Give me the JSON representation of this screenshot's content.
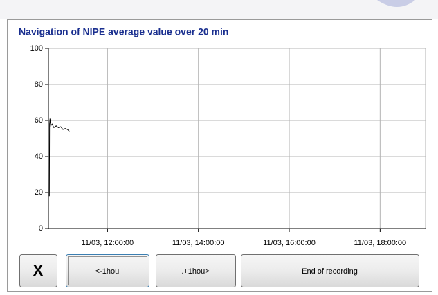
{
  "chart_data": {
    "type": "line",
    "title": "Navigation of NIPE average value over 20 min",
    "x": [
      10.72,
      10.725,
      10.735,
      10.75,
      10.78,
      10.82,
      10.87,
      10.92,
      10.97,
      11.02,
      11.07,
      11.12,
      11.16
    ],
    "values": [
      18,
      58,
      61,
      57,
      58,
      56,
      57,
      56,
      56.5,
      55,
      55.5,
      55,
      54
    ],
    "color": "#000000",
    "xlim": [
      10.7,
      19.0
    ],
    "xticks": [
      {
        "value": 12,
        "label": "11/03, 12:00:00"
      },
      {
        "value": 14,
        "label": "11/03, 14:00:00"
      },
      {
        "value": 16,
        "label": "11/03, 16:00:00"
      },
      {
        "value": 18,
        "label": "11/03, 18:00:00"
      }
    ],
    "ylim": [
      0,
      100
    ],
    "yticks": [
      0,
      20,
      40,
      60,
      80,
      100
    ],
    "grid": true
  },
  "buttons": [
    "X",
    "<-1hou",
    ".+1hou>",
    "End of recording"
  ]
}
